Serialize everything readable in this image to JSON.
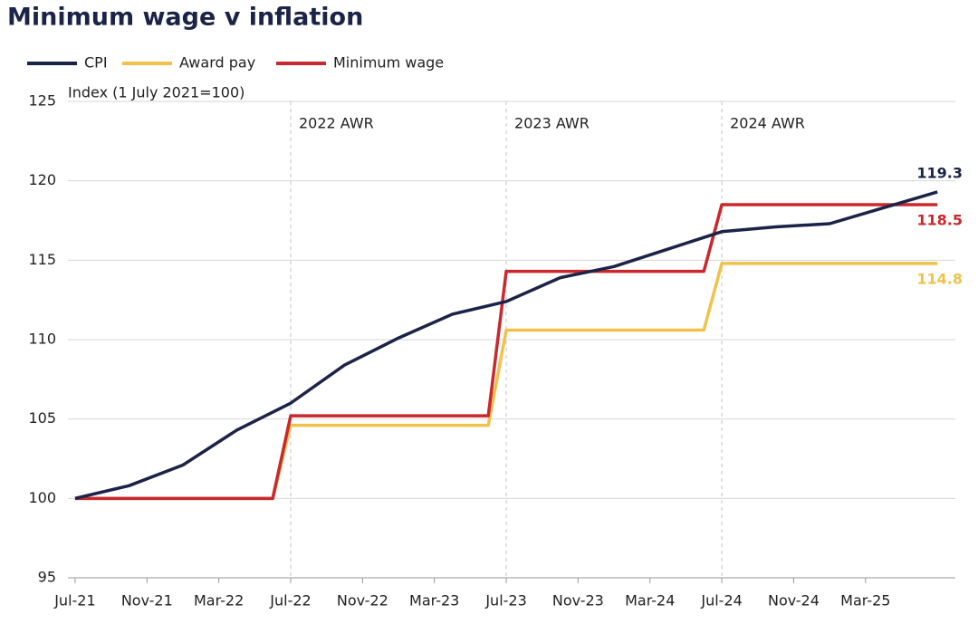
{
  "chart_data": {
    "type": "line",
    "title": "Minimum wage v inflation",
    "y_label": "Index (1 July 2021=100)",
    "xlim": [
      -0.4,
      49
    ],
    "ylim": [
      95,
      125
    ],
    "yticks": [
      95,
      100,
      105,
      110,
      115,
      120,
      125
    ],
    "xticks": [
      {
        "value": 0,
        "label": "Jul-21"
      },
      {
        "value": 4,
        "label": "Nov-21"
      },
      {
        "value": 8,
        "label": "Mar-22"
      },
      {
        "value": 12,
        "label": "Jul-22"
      },
      {
        "value": 16,
        "label": "Nov-22"
      },
      {
        "value": 20,
        "label": "Mar-23"
      },
      {
        "value": 24,
        "label": "Jul-23"
      },
      {
        "value": 28,
        "label": "Nov-23"
      },
      {
        "value": 32,
        "label": "Mar-24"
      },
      {
        "value": 36,
        "label": "Jul-24"
      },
      {
        "value": 40,
        "label": "Nov-24"
      },
      {
        "value": 44,
        "label": "Mar-25"
      }
    ],
    "grid": true,
    "annotations": [
      {
        "x": 12,
        "text": "2022 AWR"
      },
      {
        "x": 24,
        "text": "2023 AWR"
      },
      {
        "x": 36,
        "text": "2024 AWR"
      }
    ],
    "series": [
      {
        "name": "CPI",
        "color": "#1b2447",
        "x": [
          0,
          3,
          6,
          9,
          12,
          15,
          18,
          21,
          24,
          27,
          30,
          33,
          36,
          39,
          42,
          45,
          48
        ],
        "values": [
          100,
          100.8,
          102.1,
          104.3,
          106.0,
          108.4,
          110.1,
          111.6,
          112.4,
          113.9,
          114.6,
          115.7,
          116.8,
          117.1,
          117.3,
          118.3,
          119.3
        ]
      },
      {
        "name": "Award pay",
        "color": "#f0c24b",
        "x": [
          0,
          11,
          12,
          23,
          24,
          35,
          36,
          48
        ],
        "values": [
          100,
          100,
          104.6,
          104.6,
          110.6,
          110.6,
          114.8,
          114.8
        ]
      },
      {
        "name": "Minimum wage",
        "color": "#c8282e",
        "x": [
          0,
          11,
          12,
          23,
          24,
          35,
          36,
          48
        ],
        "values": [
          100,
          100,
          105.2,
          105.2,
          114.3,
          114.3,
          118.5,
          118.5
        ]
      }
    ]
  }
}
